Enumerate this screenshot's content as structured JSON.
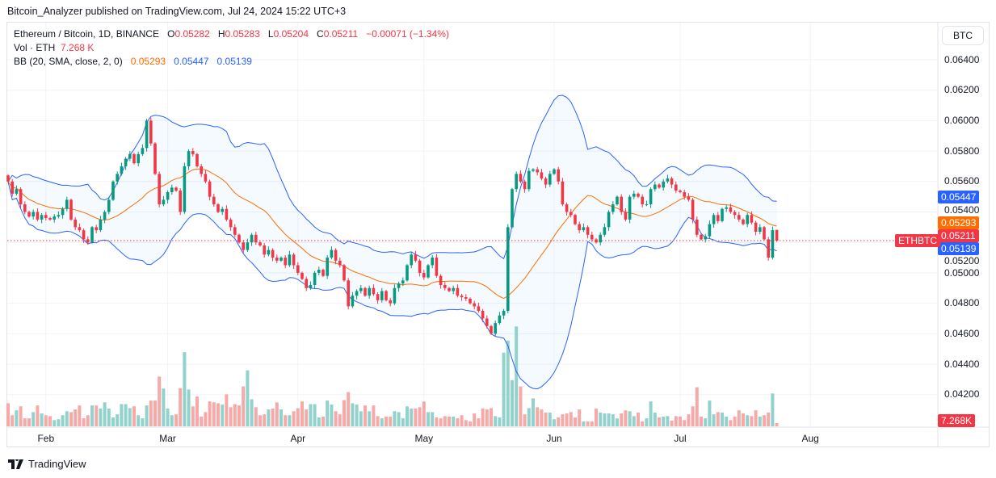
{
  "header": {
    "published": "Bitcoin_Analyzer published on TradingView.com, Jul 24, 2024 15:22 UTC+3"
  },
  "legend": {
    "symbol": "Ethereum / Bitcoin, 1D, BINANCE",
    "o_label": "O",
    "o": "0.05282",
    "h_label": "H",
    "h": "0.05283",
    "l_label": "L",
    "l": "0.05204",
    "c_label": "C",
    "c": "0.05211",
    "change": "−0.00071 (−1.34%)",
    "vol_label": "Vol · ETH",
    "vol": "7.268 K",
    "bb_label": "BB (20, SMA, close, 2, 0)",
    "bb_basis": "0.05293",
    "bb_upper": "0.05447",
    "bb_lower": "0.05139"
  },
  "currency_button": "BTC",
  "tags": {
    "bb_upper": "0.05447",
    "bb_basis": "0.05293",
    "last_price": "0.05211",
    "bb_lower": "0.05139",
    "symbol": "ETHBTC",
    "volume": "7.268K"
  },
  "footer": {
    "logo": "TradingView"
  },
  "colors": {
    "up": "#089981",
    "down": "#f23645",
    "vol_up": "#92d2cc",
    "vol_down": "#f7a9a7",
    "bb_band": "#2962ff",
    "bb_basis": "#ff6d00"
  },
  "chart_data": {
    "type": "candlestick",
    "interval": "1D",
    "y_ticks": [
      "0.06400",
      "0.06200",
      "0.06000",
      "0.05800",
      "0.05600",
      "0.05400",
      "0.05200",
      "0.05000",
      "0.04800",
      "0.04600",
      "0.04400",
      "0.04200"
    ],
    "x_ticks": [
      "Feb",
      "Mar",
      "Apr",
      "May",
      "Jun",
      "Jul",
      "Aug"
    ],
    "ylim": [
      0.04,
      0.0679
    ],
    "grid": true,
    "last_bar": {
      "open": 0.05282,
      "high": 0.05283,
      "low": 0.05204,
      "close": 0.05211
    },
    "close": [
      0.056,
      0.0552,
      0.0555,
      0.0545,
      0.054,
      0.0537,
      0.054,
      0.0535,
      0.0538,
      0.0536,
      0.0535,
      0.0537,
      0.0538,
      0.0542,
      0.0548,
      0.0535,
      0.053,
      0.0528,
      0.0522,
      0.052,
      0.053,
      0.0528,
      0.0535,
      0.054,
      0.0548,
      0.056,
      0.0565,
      0.057,
      0.0575,
      0.0578,
      0.0572,
      0.0578,
      0.0582,
      0.06,
      0.0585,
      0.0565,
      0.0545,
      0.0548,
      0.0553,
      0.0556,
      0.0554,
      0.054,
      0.057,
      0.058,
      0.0578,
      0.057,
      0.0565,
      0.056,
      0.055,
      0.0545,
      0.054,
      0.0542,
      0.0535,
      0.053,
      0.0525,
      0.052,
      0.0515,
      0.052,
      0.0525,
      0.052,
      0.0518,
      0.0512,
      0.0515,
      0.051,
      0.0508,
      0.051,
      0.0505,
      0.0512,
      0.0505,
      0.05,
      0.0496,
      0.049,
      0.0492,
      0.05,
      0.0502,
      0.0498,
      0.051,
      0.0515,
      0.0508,
      0.0505,
      0.0495,
      0.0478,
      0.0485,
      0.0488,
      0.049,
      0.0485,
      0.049,
      0.0486,
      0.0482,
      0.0488,
      0.0482,
      0.048,
      0.049,
      0.0493,
      0.0495,
      0.0505,
      0.0512,
      0.0508,
      0.05,
      0.0497,
      0.0505,
      0.051,
      0.0498,
      0.0492,
      0.049,
      0.0488,
      0.049,
      0.0485,
      0.0484,
      0.0483,
      0.048,
      0.0478,
      0.0475,
      0.047,
      0.0465,
      0.046,
      0.0467,
      0.0472,
      0.0475,
      0.053,
      0.0555,
      0.0565,
      0.056,
      0.0555,
      0.0567,
      0.0568,
      0.0566,
      0.0562,
      0.0558,
      0.0565,
      0.0568,
      0.056,
      0.0545,
      0.054,
      0.0538,
      0.0532,
      0.0528,
      0.053,
      0.0525,
      0.0522,
      0.052,
      0.0525,
      0.053,
      0.054,
      0.0545,
      0.055,
      0.054,
      0.0535,
      0.055,
      0.0552,
      0.055,
      0.0545,
      0.0545,
      0.0555,
      0.0558,
      0.0556,
      0.056,
      0.0562,
      0.0558,
      0.0554,
      0.0553,
      0.055,
      0.0548,
      0.0535,
      0.0525,
      0.0522,
      0.0524,
      0.0532,
      0.0538,
      0.0534,
      0.0542,
      0.0543,
      0.054,
      0.0538,
      0.0535,
      0.0532,
      0.0538,
      0.0533,
      0.0527,
      0.053,
      0.0522,
      0.051,
      0.0528,
      0.05211
    ],
    "volume_k": [
      52,
      25,
      36,
      45,
      18,
      18,
      32,
      47,
      29,
      25,
      23,
      14,
      16,
      25,
      34,
      32,
      38,
      47,
      18,
      25,
      47,
      47,
      40,
      54,
      40,
      20,
      27,
      50,
      50,
      41,
      45,
      25,
      18,
      47,
      58,
      58,
      112,
      85,
      40,
      25,
      27,
      86,
      167,
      83,
      45,
      67,
      22,
      32,
      56,
      54,
      52,
      49,
      72,
      43,
      50,
      47,
      90,
      126,
      61,
      43,
      25,
      27,
      38,
      40,
      54,
      38,
      25,
      25,
      34,
      41,
      56,
      38,
      50,
      50,
      20,
      22,
      58,
      49,
      34,
      27,
      59,
      77,
      52,
      49,
      34,
      47,
      34,
      47,
      23,
      18,
      22,
      22,
      34,
      32,
      18,
      45,
      40,
      40,
      43,
      56,
      32,
      32,
      20,
      18,
      23,
      22,
      22,
      18,
      25,
      14,
      11,
      29,
      18,
      40,
      38,
      41,
      23,
      20,
      166,
      193,
      104,
      225,
      90,
      27,
      41,
      63,
      43,
      38,
      31,
      31,
      16,
      20,
      27,
      29,
      32,
      20,
      38,
      11,
      11,
      11,
      40,
      31,
      29,
      29,
      27,
      18,
      29,
      36,
      34,
      23,
      31,
      11,
      18,
      56,
      31,
      20,
      22,
      23,
      13,
      23,
      22,
      14,
      27,
      45,
      88,
      22,
      18,
      58,
      27,
      32,
      31,
      22,
      14,
      22,
      36,
      29,
      25,
      23,
      36,
      22,
      25,
      31,
      74,
      7.268
    ],
    "indicator": {
      "name": "BB",
      "length": 20,
      "basis": "SMA",
      "source": "close",
      "stddev": 2,
      "offset": 0
    }
  }
}
